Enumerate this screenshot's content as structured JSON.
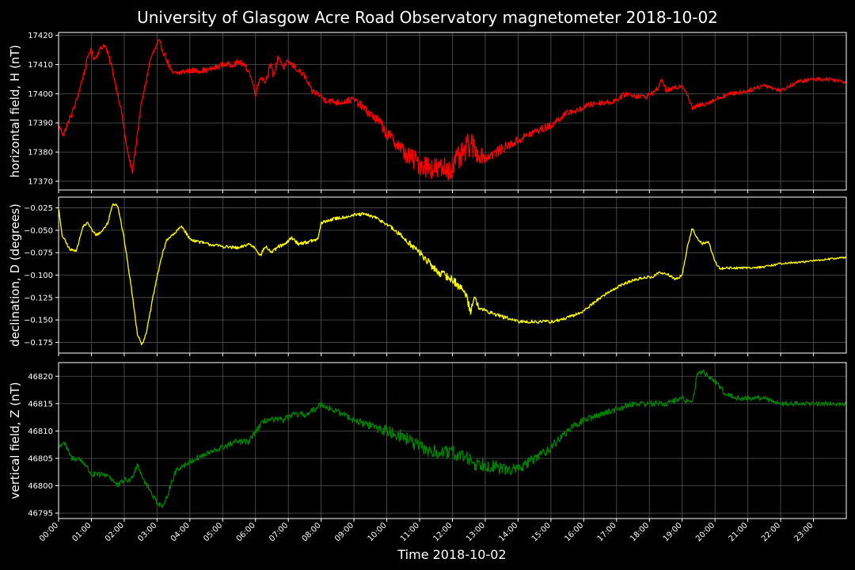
{
  "title": "University of Glasgow Acre Road Observatory magnetometer 2018-10-02",
  "chart_data": {
    "type": "line",
    "xlabel": "Time 2018-10-02",
    "x_unit": "hours",
    "xlim": [
      0,
      24
    ],
    "x_ticks": [
      0,
      1,
      2,
      3,
      4,
      5,
      6,
      7,
      8,
      9,
      10,
      11,
      12,
      13,
      14,
      15,
      16,
      17,
      18,
      19,
      20,
      21,
      22,
      23
    ],
    "x_tick_labels": [
      "00:00",
      "01:00",
      "02:00",
      "03:00",
      "04:00",
      "05:00",
      "06:00",
      "07:00",
      "08:00",
      "09:00",
      "10:00",
      "11:00",
      "12:00",
      "13:00",
      "14:00",
      "15:00",
      "16:00",
      "17:00",
      "18:00",
      "19:00",
      "20:00",
      "21:00",
      "22:00",
      "23:00"
    ],
    "grid": true,
    "background": "#000000",
    "panels": [
      {
        "id": "H",
        "ylabel": "horizontal field, H (nT)",
        "color": "#ff0000",
        "ylim": [
          17367,
          17421
        ],
        "y_ticks": [
          17370,
          17380,
          17390,
          17400,
          17410,
          17420
        ],
        "y_tick_labels": [
          "17370",
          "17380",
          "17390",
          "17400",
          "17410",
          "17420"
        ],
        "noise": [
          [
            0,
            1.0
          ],
          [
            7,
            1.0
          ],
          [
            9,
            1.2
          ],
          [
            10,
            2.0
          ],
          [
            11,
            4.0
          ],
          [
            12.5,
            4.5
          ],
          [
            13,
            2.0
          ],
          [
            14,
            1.5
          ],
          [
            16,
            1.0
          ],
          [
            24,
            0.6
          ]
        ],
        "x": [
          0,
          0.15,
          0.5,
          0.75,
          0.95,
          1.1,
          1.25,
          1.4,
          1.6,
          1.9,
          2.1,
          2.25,
          2.5,
          2.8,
          3.05,
          3.25,
          3.45,
          3.6,
          4.0,
          4.5,
          4.8,
          5.0,
          5.3,
          5.5,
          5.8,
          6.0,
          6.15,
          6.3,
          6.45,
          6.55,
          6.7,
          6.85,
          7.0,
          7.2,
          7.5,
          7.7,
          7.9,
          8.1,
          8.5,
          9.0,
          9.3,
          9.5,
          9.8,
          10.0,
          10.3,
          10.6,
          11.0,
          11.3,
          11.6,
          12.0,
          12.3,
          12.55,
          12.7,
          13.0,
          13.5,
          14.0,
          14.5,
          15.0,
          15.3,
          15.6,
          15.8,
          16.1,
          16.5,
          16.8,
          17.0,
          17.3,
          17.7,
          17.9,
          18.2,
          18.4,
          18.5,
          18.8,
          19.0,
          19.15,
          19.3,
          19.5,
          19.8,
          20.2,
          20.5,
          21.0,
          21.5,
          22.0,
          22.5,
          23.0,
          23.5,
          24.0
        ],
        "y": [
          17389,
          17386,
          17396,
          17406,
          17415,
          17412,
          17415,
          17417,
          17410,
          17395,
          17380,
          17373,
          17395,
          17412,
          17418,
          17413,
          17407,
          17407,
          17408,
          17408,
          17409,
          17410,
          17410,
          17411,
          17408,
          17400,
          17406,
          17404,
          17410,
          17406,
          17413,
          17409,
          17411,
          17409,
          17406,
          17401,
          17400,
          17398,
          17397,
          17398,
          17395,
          17393,
          17390,
          17386,
          17383,
          17379,
          17376,
          17375,
          17374,
          17375,
          17379,
          17383,
          17380,
          17378,
          17381,
          17384,
          17387,
          17389,
          17392,
          17394,
          17394,
          17396,
          17397,
          17397,
          17398,
          17400,
          17399,
          17399,
          17401,
          17405,
          17401,
          17402,
          17403,
          17400,
          17395,
          17396,
          17397,
          17399,
          17400,
          17401,
          17403,
          17401,
          17404,
          17405,
          17405,
          17404
        ]
      },
      {
        "id": "D",
        "ylabel": "declination, D (degrees)",
        "color": "#ffff00",
        "ylim": [
          -0.187,
          -0.013
        ],
        "y_ticks": [
          -0.175,
          -0.15,
          -0.125,
          -0.1,
          -0.075,
          -0.05,
          -0.025
        ],
        "y_tick_labels": [
          "−0.175",
          "−0.150",
          "−0.125",
          "−0.100",
          "−0.075",
          "−0.050",
          "−0.025"
        ],
        "noise": [
          [
            0,
            0.0015
          ],
          [
            10,
            0.002
          ],
          [
            11,
            0.004
          ],
          [
            12.5,
            0.005
          ],
          [
            13,
            0.002
          ],
          [
            24,
            0.001
          ]
        ],
        "x": [
          0,
          0.1,
          0.35,
          0.55,
          0.75,
          0.9,
          1.05,
          1.15,
          1.3,
          1.5,
          1.65,
          1.8,
          2.0,
          2.2,
          2.4,
          2.55,
          2.7,
          2.9,
          3.1,
          3.3,
          3.5,
          3.75,
          4.0,
          4.5,
          5.0,
          5.5,
          5.8,
          6.0,
          6.15,
          6.3,
          6.5,
          6.7,
          6.9,
          7.1,
          7.3,
          7.6,
          7.9,
          8.0,
          8.3,
          8.6,
          9.0,
          9.3,
          9.6,
          10.0,
          10.5,
          11.0,
          11.5,
          12.0,
          12.4,
          12.55,
          12.65,
          12.8,
          13.0,
          13.5,
          14.0,
          14.5,
          15.0,
          15.3,
          15.7,
          16.0,
          16.4,
          16.8,
          17.2,
          17.5,
          17.8,
          18.1,
          18.3,
          18.6,
          18.8,
          19.0,
          19.15,
          19.3,
          19.45,
          19.6,
          19.8,
          20.0,
          20.15,
          20.3,
          20.8,
          21.5,
          22.0,
          22.5,
          23.0,
          23.5,
          24.0
        ],
        "y": [
          -0.025,
          -0.055,
          -0.072,
          -0.072,
          -0.045,
          -0.042,
          -0.052,
          -0.055,
          -0.052,
          -0.042,
          -0.02,
          -0.022,
          -0.06,
          -0.11,
          -0.165,
          -0.178,
          -0.16,
          -0.12,
          -0.085,
          -0.06,
          -0.055,
          -0.045,
          -0.06,
          -0.065,
          -0.068,
          -0.07,
          -0.065,
          -0.07,
          -0.078,
          -0.068,
          -0.075,
          -0.068,
          -0.066,
          -0.058,
          -0.065,
          -0.063,
          -0.06,
          -0.042,
          -0.038,
          -0.036,
          -0.033,
          -0.032,
          -0.035,
          -0.043,
          -0.058,
          -0.075,
          -0.095,
          -0.105,
          -0.12,
          -0.14,
          -0.125,
          -0.135,
          -0.14,
          -0.146,
          -0.152,
          -0.152,
          -0.152,
          -0.15,
          -0.145,
          -0.14,
          -0.128,
          -0.118,
          -0.11,
          -0.106,
          -0.103,
          -0.102,
          -0.097,
          -0.1,
          -0.105,
          -0.1,
          -0.07,
          -0.048,
          -0.058,
          -0.065,
          -0.063,
          -0.085,
          -0.093,
          -0.092,
          -0.092,
          -0.091,
          -0.087,
          -0.086,
          -0.084,
          -0.082,
          -0.08
        ]
      },
      {
        "id": "Z",
        "ylabel": "vertical field, Z (nT)",
        "color": "#008000",
        "ylim": [
          46794,
          46822.5
        ],
        "y_ticks": [
          46795,
          46800,
          46805,
          46810,
          46815,
          46820
        ],
        "y_tick_labels": [
          "46795",
          "46800",
          "46805",
          "46810",
          "46815",
          "46820"
        ],
        "noise": [
          [
            0,
            0.5
          ],
          [
            9,
            0.6
          ],
          [
            10,
            1.0
          ],
          [
            11,
            1.3
          ],
          [
            13,
            1.3
          ],
          [
            14,
            1.0
          ],
          [
            16,
            0.6
          ],
          [
            24,
            0.4
          ]
        ],
        "x": [
          0,
          0.15,
          0.4,
          0.6,
          0.8,
          1.0,
          1.2,
          1.5,
          1.8,
          2.0,
          2.2,
          2.4,
          2.6,
          2.8,
          3.0,
          3.2,
          3.4,
          3.6,
          3.9,
          4.2,
          4.6,
          5.0,
          5.4,
          5.8,
          6.0,
          6.3,
          6.5,
          6.8,
          7.2,
          7.6,
          8.0,
          8.3,
          8.7,
          9.0,
          9.5,
          10.0,
          10.5,
          11.0,
          11.5,
          12.0,
          12.5,
          12.7,
          13.0,
          13.5,
          14.0,
          14.5,
          15.0,
          15.5,
          16.0,
          16.5,
          17.0,
          17.5,
          18.0,
          18.5,
          19.0,
          19.3,
          19.45,
          19.6,
          19.8,
          20.0,
          20.3,
          20.6,
          21.0,
          21.5,
          22.0,
          22.5,
          23.0,
          23.5,
          24.0
        ],
        "y": [
          46807,
          46808,
          46805,
          46805,
          46804,
          46802,
          46802,
          46802,
          46800,
          46801,
          46801,
          46804,
          46801,
          46799,
          46797,
          46796,
          46800,
          46803,
          46804,
          46805,
          46806,
          46807,
          46808,
          46808,
          46810,
          46812,
          46812,
          46812,
          46813,
          46813,
          46815,
          46814,
          46813,
          46812,
          46811,
          46810,
          46809,
          46807,
          46806,
          46806,
          46805,
          46804,
          46804,
          46803,
          46803,
          46805,
          46807,
          46810,
          46812,
          46813,
          46814,
          46815,
          46815,
          46815,
          46816,
          46815,
          46820,
          46821,
          46820,
          46819,
          46817,
          46816,
          46816,
          46816,
          46815,
          46815,
          46815,
          46815,
          46815
        ]
      }
    ]
  }
}
